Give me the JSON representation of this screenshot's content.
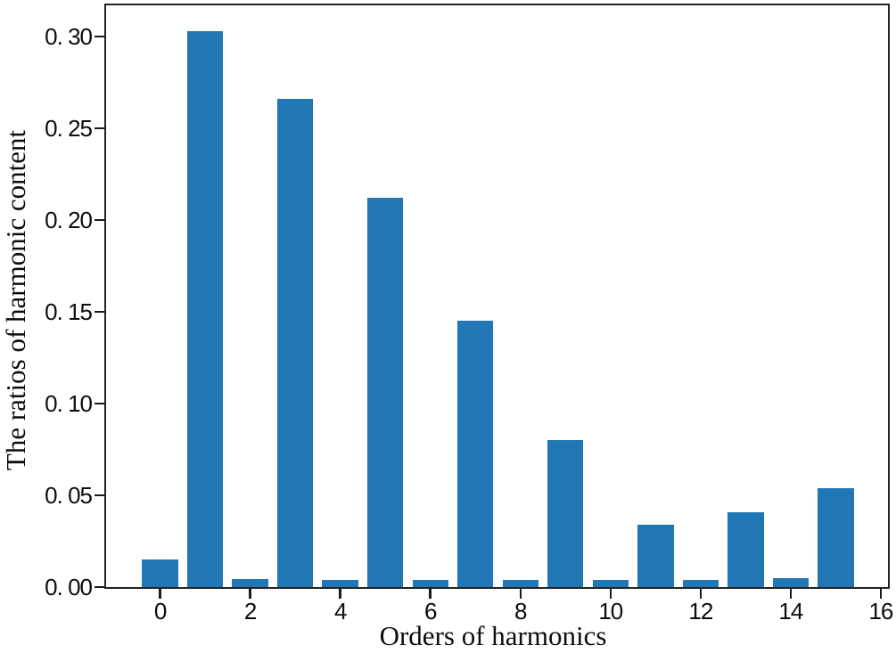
{
  "figure": {
    "background": "#ffffff",
    "bar_color": "#2176b5",
    "spine_color": "#232323",
    "tick_color": "#1a1a1a",
    "text_color": "#0d0d0d"
  },
  "chart_data": {
    "type": "bar",
    "title": "",
    "xlabel": "Orders of harmonics",
    "ylabel": "The ratios of harmonic content",
    "categories": [
      0,
      1,
      2,
      3,
      4,
      5,
      6,
      7,
      8,
      9,
      10,
      11,
      12,
      13,
      14,
      15
    ],
    "values": [
      0.015,
      0.303,
      0.0045,
      0.266,
      0.004,
      0.212,
      0.004,
      0.145,
      0.004,
      0.08,
      0.004,
      0.034,
      0.004,
      0.041,
      0.005,
      0.054
    ],
    "bar_width": 0.8,
    "xlim": [
      -1.2,
      16.16
    ],
    "ylim": [
      0,
      0.317
    ],
    "x_ticks": [
      {
        "value": 0,
        "label": "0"
      },
      {
        "value": 2,
        "label": "2"
      },
      {
        "value": 4,
        "label": "4"
      },
      {
        "value": 6,
        "label": "6"
      },
      {
        "value": 8,
        "label": "8"
      },
      {
        "value": 10,
        "label": "10"
      },
      {
        "value": 12,
        "label": "12"
      },
      {
        "value": 14,
        "label": "14"
      },
      {
        "value": 16,
        "label": "16"
      }
    ],
    "y_ticks": [
      {
        "value": 0.0,
        "label": "0. 00"
      },
      {
        "value": 0.05,
        "label": "0. 05"
      },
      {
        "value": 0.1,
        "label": "0. 10"
      },
      {
        "value": 0.15,
        "label": "0. 15"
      },
      {
        "value": 0.2,
        "label": "0. 20"
      },
      {
        "value": 0.25,
        "label": "0. 25"
      },
      {
        "value": 0.3,
        "label": "0. 30"
      }
    ],
    "grid": false,
    "legend": null
  }
}
